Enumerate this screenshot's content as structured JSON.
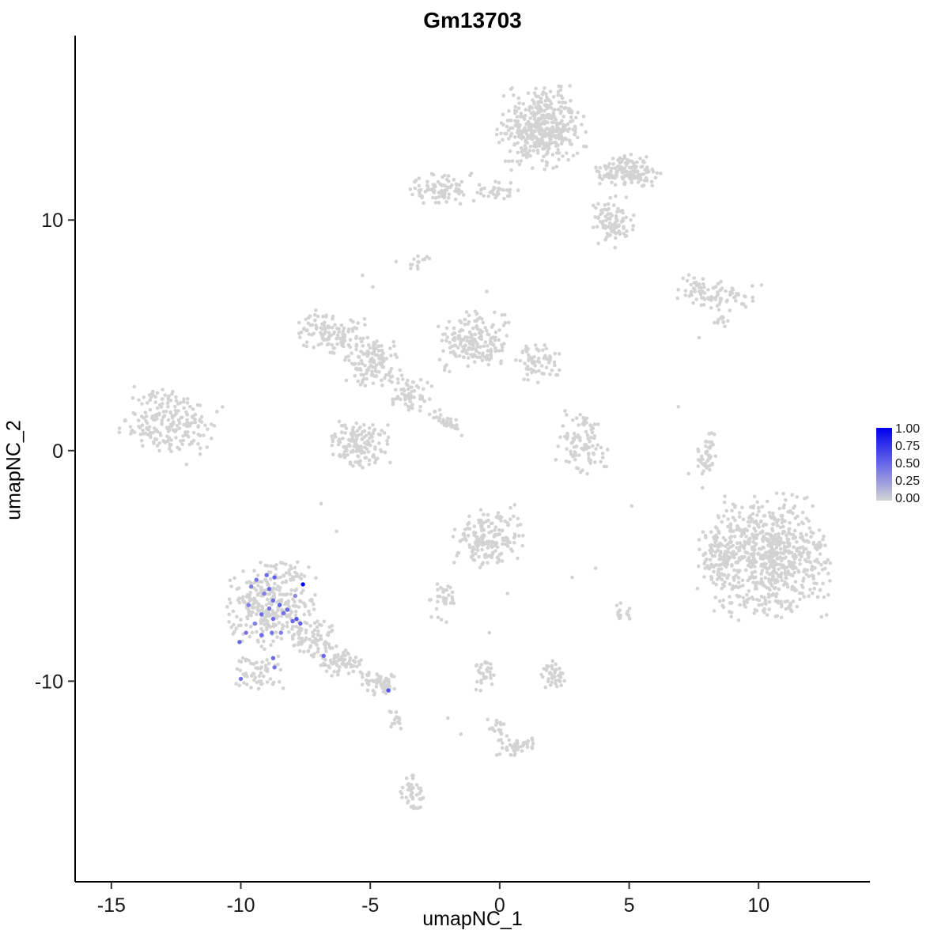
{
  "title": "Gm13703",
  "axes": {
    "x_label": "umapNC_1",
    "y_label": "umapNC_2"
  },
  "legend": {
    "labels": [
      "1.00",
      "0.75",
      "0.50",
      "0.25",
      "0.00"
    ],
    "high_color": "#0000EE",
    "low_color": "#D3D3D3"
  },
  "chart_data": {
    "type": "scatter",
    "title": "Gm13703",
    "xlabel": "umapNC_1",
    "ylabel": "umapNC_2",
    "xlim": [
      -16.4,
      14.3
    ],
    "ylim": [
      -18.7,
      18.0
    ],
    "x_ticks": [
      "-15",
      "-10",
      "-5",
      "0",
      "5",
      "10"
    ],
    "x_tick_values": [
      -15,
      -10,
      -5,
      0,
      5,
      10
    ],
    "y_ticks": [
      "-10",
      "0",
      "10"
    ],
    "y_tick_values": [
      -10,
      0,
      10
    ],
    "grid": false,
    "legend_position": "right",
    "point_color_zero": "#D3D3D3",
    "point_color_max": "#0000EE",
    "colorbar_range": [
      0.0,
      1.0
    ],
    "background_clusters": [
      {
        "name": "top-main",
        "cx": 1.6,
        "cy": 14.0,
        "rx": 1.8,
        "ry": 1.9,
        "n": 420
      },
      {
        "name": "top-right-arm",
        "cx": 4.9,
        "cy": 12.1,
        "rx": 1.4,
        "ry": 0.8,
        "n": 140
      },
      {
        "name": "top-right-tail",
        "cx": 4.4,
        "cy": 9.9,
        "rx": 0.9,
        "ry": 1.2,
        "n": 90
      },
      {
        "name": "top-left-bridge",
        "cx": -0.1,
        "cy": 11.3,
        "rx": 0.9,
        "ry": 0.45,
        "n": 35
      },
      {
        "name": "upper-left-small",
        "cx": -2.2,
        "cy": 11.4,
        "rx": 1.4,
        "ry": 0.85,
        "n": 90
      },
      {
        "name": "tiny-upper-mid",
        "cx": -3.1,
        "cy": 8.2,
        "rx": 0.45,
        "ry": 0.35,
        "n": 14
      },
      {
        "name": "right-streak",
        "cx": 8.3,
        "cy": 6.8,
        "rx": 1.8,
        "ry": 0.8,
        "n": 90,
        "rot": -8
      },
      {
        "name": "right-streak-dot",
        "cx": 8.6,
        "cy": 5.6,
        "rx": 0.45,
        "ry": 0.3,
        "n": 12
      },
      {
        "name": "central-lobe-1",
        "cx": -6.6,
        "cy": 5.1,
        "rx": 1.5,
        "ry": 1.0,
        "n": 120,
        "rot": -15
      },
      {
        "name": "central-lobe-2",
        "cx": -4.9,
        "cy": 3.8,
        "rx": 1.2,
        "ry": 1.2,
        "n": 120
      },
      {
        "name": "central-lobe-3",
        "cx": -1.0,
        "cy": 4.8,
        "rx": 1.6,
        "ry": 1.4,
        "n": 190
      },
      {
        "name": "central-lobe-4",
        "cx": 1.5,
        "cy": 3.8,
        "rx": 1.0,
        "ry": 0.9,
        "n": 70
      },
      {
        "name": "central-lower",
        "cx": -5.4,
        "cy": 0.3,
        "rx": 1.2,
        "ry": 1.1,
        "n": 150
      },
      {
        "name": "central-bridge",
        "cx": -3.4,
        "cy": 2.4,
        "rx": 0.9,
        "ry": 0.9,
        "n": 60
      },
      {
        "name": "central-streak",
        "cx": -2.0,
        "cy": 1.2,
        "rx": 1.0,
        "ry": 0.35,
        "n": 35,
        "rot": -35
      },
      {
        "name": "far-left",
        "cx": -12.8,
        "cy": 1.2,
        "rx": 2.0,
        "ry": 1.5,
        "n": 220,
        "rot": -8
      },
      {
        "name": "mid-right-sparse",
        "cx": 3.2,
        "cy": 0.4,
        "rx": 1.1,
        "ry": 1.6,
        "n": 95
      },
      {
        "name": "right-thin",
        "cx": 8.0,
        "cy": -0.3,
        "rx": 0.4,
        "ry": 1.5,
        "n": 45
      },
      {
        "name": "big-right-core",
        "cx": 10.5,
        "cy": -4.6,
        "rx": 2.4,
        "ry": 2.8,
        "n": 700
      },
      {
        "name": "big-right-fringe",
        "cx": 8.4,
        "cy": -4.5,
        "rx": 0.9,
        "ry": 1.8,
        "n": 110
      },
      {
        "name": "center-bottom",
        "cx": -0.4,
        "cy": -3.8,
        "rx": 1.5,
        "ry": 1.5,
        "n": 170
      },
      {
        "name": "center-bottom-tail",
        "cx": -2.2,
        "cy": -6.5,
        "rx": 0.6,
        "ry": 1.0,
        "n": 35
      },
      {
        "name": "lowleft-main",
        "cx": -8.8,
        "cy": -6.7,
        "rx": 1.9,
        "ry": 2.0,
        "n": 330
      },
      {
        "name": "lowleft-lower",
        "cx": -9.3,
        "cy": -9.6,
        "rx": 1.0,
        "ry": 0.8,
        "n": 60
      },
      {
        "name": "lowleft-neck",
        "cx": -7.2,
        "cy": -8.2,
        "rx": 1.0,
        "ry": 0.9,
        "n": 70
      },
      {
        "name": "lowleft-tail-1",
        "cx": -6.2,
        "cy": -9.2,
        "rx": 1.0,
        "ry": 0.7,
        "n": 70
      },
      {
        "name": "lowleft-tail-2",
        "cx": -4.6,
        "cy": -10.1,
        "rx": 0.9,
        "ry": 0.55,
        "n": 60,
        "rot": -15
      },
      {
        "name": "small-below-tail",
        "cx": -4.0,
        "cy": -11.7,
        "rx": 0.4,
        "ry": 0.55,
        "n": 14
      },
      {
        "name": "bottom-trail-1",
        "cx": -0.6,
        "cy": -9.7,
        "rx": 0.45,
        "ry": 0.9,
        "n": 32
      },
      {
        "name": "bottom-trail-2",
        "cx": -0.1,
        "cy": -12.0,
        "rx": 0.4,
        "ry": 0.55,
        "n": 16
      },
      {
        "name": "bottom-trail-3",
        "cx": 0.6,
        "cy": -12.8,
        "rx": 0.9,
        "ry": 0.5,
        "n": 45
      },
      {
        "name": "bottom-right-blob",
        "cx": 2.1,
        "cy": -9.7,
        "rx": 0.6,
        "ry": 0.65,
        "n": 40
      },
      {
        "name": "bottom-small",
        "cx": -3.4,
        "cy": -14.8,
        "rx": 0.55,
        "ry": 0.9,
        "n": 42
      },
      {
        "name": "lower-right-sparse",
        "cx": 4.8,
        "cy": -7.1,
        "rx": 0.45,
        "ry": 0.65,
        "n": 16
      }
    ],
    "singles": [
      [
        7.7,
        4.9
      ],
      [
        5.1,
        -2.4
      ],
      [
        3.7,
        -5.1
      ],
      [
        2.8,
        -5.5
      ],
      [
        -0.4,
        -7.9
      ],
      [
        -2.0,
        -11.6
      ],
      [
        -1.5,
        -12.3
      ],
      [
        7.3,
        -1.0
      ],
      [
        -5.3,
        7.6
      ],
      [
        -4.9,
        7.1
      ],
      [
        -4.0,
        8.2
      ],
      [
        -6.9,
        -2.3
      ],
      [
        -6.3,
        -3.5
      ],
      [
        6.9,
        1.9
      ],
      [
        0.3,
        -6.2
      ],
      [
        -12.1,
        -0.6
      ],
      [
        -0.5,
        6.9
      ],
      [
        -0.2,
        6.0
      ]
    ],
    "highlighted_points_xyv": [
      [
        -9.0,
        -5.4,
        0.5
      ],
      [
        -8.7,
        -5.5,
        0.55
      ],
      [
        -9.4,
        -5.6,
        0.45
      ],
      [
        -9.6,
        -5.9,
        0.4
      ],
      [
        -8.9,
        -6.0,
        0.5
      ],
      [
        -7.6,
        -5.8,
        1.0
      ],
      [
        -8.75,
        -6.5,
        0.5
      ],
      [
        -8.5,
        -6.7,
        0.55
      ],
      [
        -8.9,
        -6.85,
        0.45
      ],
      [
        -9.7,
        -6.7,
        0.4
      ],
      [
        -9.2,
        -7.1,
        0.5
      ],
      [
        -8.75,
        -7.3,
        0.5
      ],
      [
        -8.35,
        -7.05,
        0.45
      ],
      [
        -7.85,
        -7.3,
        0.6
      ],
      [
        -7.7,
        -7.5,
        0.55
      ],
      [
        -9.45,
        -7.5,
        0.4
      ],
      [
        -9.8,
        -7.9,
        0.45
      ],
      [
        -9.2,
        -8.0,
        0.5
      ],
      [
        -8.8,
        -7.9,
        0.45
      ],
      [
        -8.45,
        -7.9,
        0.4
      ],
      [
        -10.05,
        -8.3,
        0.5
      ],
      [
        -8.75,
        -9.0,
        0.5
      ],
      [
        -8.7,
        -9.4,
        0.45
      ],
      [
        -6.8,
        -8.9,
        0.5
      ],
      [
        -10.0,
        -9.9,
        0.45
      ],
      [
        -4.3,
        -10.4,
        0.6
      ],
      [
        -8.0,
        -7.4,
        0.5
      ],
      [
        -9.1,
        -6.2,
        0.4
      ],
      [
        -8.2,
        -6.9,
        0.5
      ],
      [
        -7.9,
        -6.3,
        0.35
      ]
    ]
  }
}
